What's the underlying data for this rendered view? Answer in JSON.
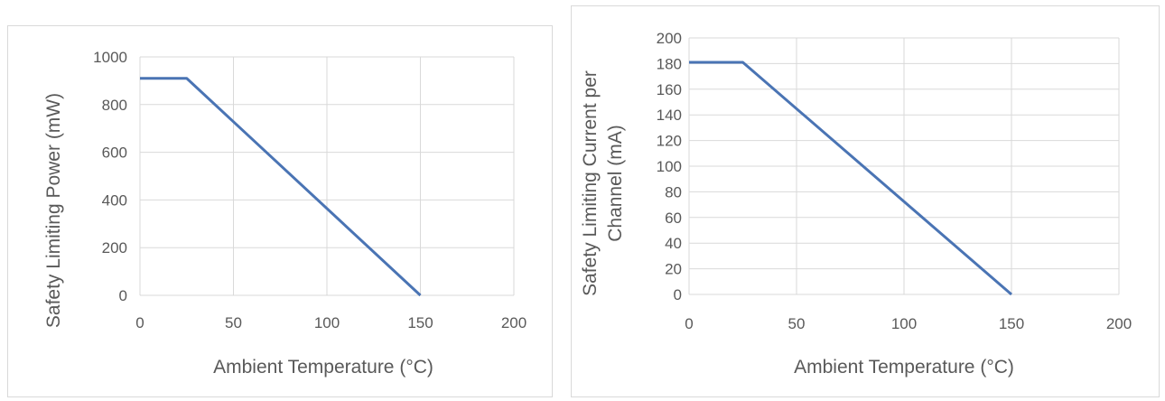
{
  "charts": {
    "chart_data": [
      {
        "type": "line",
        "xlabel": "Ambient Temperature (°C)",
        "ylabel": "Safety Limiting Power (mW)",
        "xlim": [
          0,
          200
        ],
        "ylim": [
          0,
          1000
        ],
        "x_ticks": [
          "0",
          "50",
          "100",
          "150",
          "200"
        ],
        "y_ticks": [
          "0",
          "200",
          "400",
          "600",
          "800",
          "1000"
        ],
        "grid": true,
        "series": [
          {
            "x": [
              0,
              25,
              150
            ],
            "y": [
              910,
              910,
              0
            ],
            "color": "#4a74b4"
          }
        ]
      },
      {
        "type": "line",
        "xlabel": "Ambient Temperature (°C)",
        "ylabel_lines": [
          "Safety Limiting Current per",
          "Channel (mA)"
        ],
        "xlim": [
          0,
          200
        ],
        "ylim": [
          0,
          200
        ],
        "x_ticks": [
          "0",
          "50",
          "100",
          "150",
          "200"
        ],
        "y_ticks": [
          "0",
          "20",
          "40",
          "60",
          "80",
          "100",
          "120",
          "140",
          "160",
          "180",
          "200"
        ],
        "grid": true,
        "series": [
          {
            "x": [
              0,
              25,
              150
            ],
            "y": [
              181,
              181,
              0
            ],
            "color": "#4a74b4"
          }
        ]
      }
    ]
  }
}
